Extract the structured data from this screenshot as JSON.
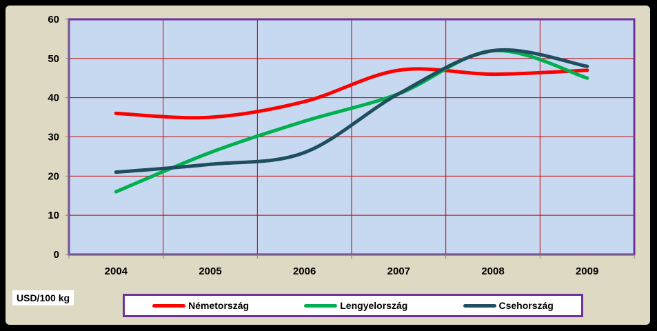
{
  "chart_data": {
    "type": "line",
    "categories": [
      "2004",
      "2005",
      "2006",
      "2007",
      "2008",
      "2009"
    ],
    "ylim": [
      0,
      60
    ],
    "yticks": [
      0,
      10,
      20,
      30,
      40,
      50,
      60
    ],
    "ylabel": "USD/100 kg",
    "grid": true,
    "legend_position": "bottom",
    "plot_background": "#c6d9f1",
    "grid_color": "#c00000",
    "plot_border_color": "#7030a0",
    "series": [
      {
        "name": "Németország",
        "color": "#ff0000",
        "values": [
          36,
          35,
          39,
          47,
          46,
          47
        ]
      },
      {
        "name": "Lengyelország",
        "color": "#00b050",
        "values": [
          16,
          26,
          34,
          41,
          52,
          45
        ]
      },
      {
        "name": "Csehország",
        "color": "#1f4e5f",
        "values": [
          21,
          23,
          26,
          41,
          52,
          48
        ]
      }
    ]
  }
}
